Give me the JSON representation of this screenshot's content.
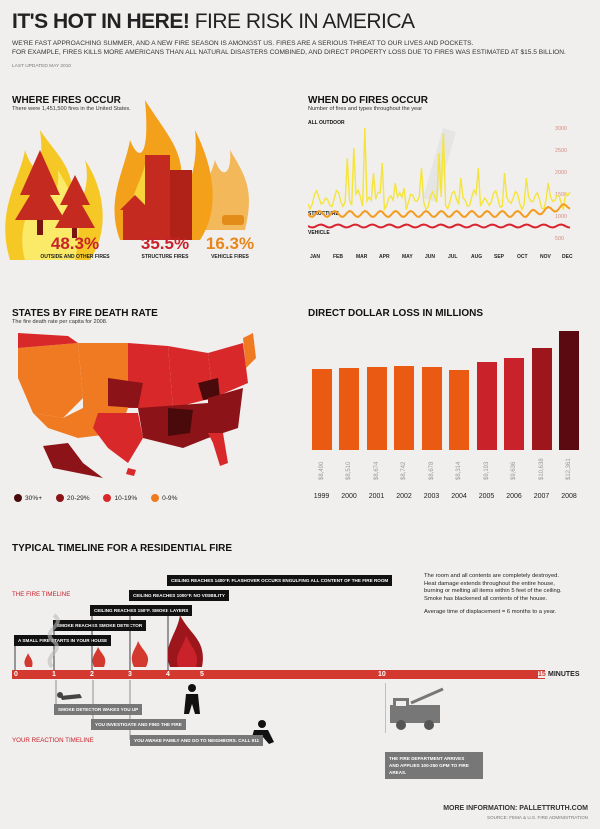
{
  "header": {
    "title_bold": "IT'S HOT IN HERE!",
    "title_rest": "FIRE RISK IN AMERICA",
    "intro_line1": "WE'RE FAST APPROACHING SUMMER, AND A NEW FIRE SEASON IS AMONGST US. FIRES ARE A SERIOUS THREAT TO OUR LIVES AND POCKETS.",
    "intro_line2": "FOR EXAMPLE, FIRES KILLS MORE AMERICANS THAN ALL NATURAL DISASTERS COMBINED, AND DIRECT PROPERTY LOSS DUE TO FIRES WAS ESTIMATED AT $15.5 BILLION.",
    "updated": "LAST UPDATED MAY 2010"
  },
  "where": {
    "title": "WHERE FIRES OCCUR",
    "subtitle": "There were 1,451,500 fires in the United States.",
    "items": [
      {
        "pct": "48.3%",
        "label": "OUTSIDE AND OTHER FIRES"
      },
      {
        "pct": "35.5%",
        "label": "STRUCTURE FIRES"
      },
      {
        "pct": "16.3%",
        "label": "VEHICLE FIRES"
      }
    ]
  },
  "when": {
    "title": "WHEN DO FIRES OCCUR",
    "subtitle": "Number of fires and types throughout the year",
    "series_outdoor": "ALL OUTDOOR",
    "series_structure": "STRUCTURE",
    "series_vehicle": "VEHICLE",
    "yticks": [
      "3000",
      "2500",
      "2000",
      "1500",
      "1000",
      "500"
    ],
    "months": [
      "JAN",
      "FEB",
      "MAR",
      "APR",
      "MAY",
      "JUN",
      "JUL",
      "AUG",
      "SEP",
      "OCT",
      "NOV",
      "DEC"
    ],
    "colors": {
      "outdoor": "#f5e43a",
      "structure": "#f39c1f",
      "vehicle": "#d9232d"
    }
  },
  "states": {
    "title": "STATES BY FIRE DEATH RATE",
    "subtitle": "The fire death rate per capita for 2008.",
    "legend": [
      {
        "label": "30%+",
        "color": "#4a0a0c"
      },
      {
        "label": "20-29%",
        "color": "#8c1418"
      },
      {
        "label": "10-19%",
        "color": "#d8282a"
      },
      {
        "label": "0-9%",
        "color": "#f07a22"
      }
    ]
  },
  "dollar": {
    "title": "DIRECT DOLLAR LOSS IN MILLIONS"
  },
  "chart_data": {
    "type": "bar",
    "title": "DIRECT DOLLAR LOSS IN MILLIONS",
    "categories": [
      "1999",
      "2000",
      "2001",
      "2002",
      "2003",
      "2004",
      "2005",
      "2006",
      "2007",
      "2008"
    ],
    "values": [
      8490,
      8510,
      8674,
      8742,
      8678,
      8314,
      9193,
      9636,
      10638,
      12361
    ],
    "value_labels": [
      "$8,490",
      "$8,510",
      "$8,674",
      "$8,742",
      "$8,678",
      "$8,314",
      "$9,193",
      "$9,636",
      "$10,638",
      "$12,361"
    ],
    "colors": [
      "#ea5a12",
      "#ea5a12",
      "#ea5a12",
      "#ea5a12",
      "#ea5a12",
      "#ea5a12",
      "#c9222a",
      "#c9222a",
      "#9c161b",
      "#5a0a10"
    ]
  },
  "timeline": {
    "title": "TYPICAL TIMELINE FOR A RESIDENTIAL FIRE",
    "fire_label": "THE FIRE TIMELINE",
    "reaction_label": "YOUR REACTION TIMELINE",
    "minutes_label": "MINUTES",
    "ticks": [
      "0",
      "1",
      "2",
      "3",
      "4",
      "5",
      "10",
      "15"
    ],
    "fire_events": [
      "CEILING REACHES 1400°F. FLASHOVER OCCURS ENGULFING ALL CONTENT OF THE FIRE ROOM",
      "CEILING REACHES 1000°F. NO VISIBILITY",
      "CEILING REACHES 150°F. SMOKE LAYERS",
      "SMOKE REACHES SMOKE DETECTOR",
      "A SMALL FIRE STARTS IN YOUR HOUSE"
    ],
    "reaction_events": [
      "SMOKE DETECTOR WAKES YOU UP",
      "YOU INVESTIGATE AND FIND THE FIRE",
      "YOU AWAKE FAMILY AND GO TO NEIGHBORS. CALL 911",
      "THE FIRE DEPARTMENT ARRIVES",
      "AND APPLIES 100-250 GPM TO FIRE AREAS."
    ],
    "note_line1": "The room and all contents are completely destroyed.",
    "note_line2": "Heat damage extends throughout the entire house,",
    "note_line3": "burning or melting all items within 5 feet of the ceiling.",
    "note_line4": "Smoke has blackened all contents of the house.",
    "note_line5": "Average time of displacement = 6 months to a year."
  },
  "footer": {
    "more": "MORE INFORMATION: PALLETTRUTH.COM",
    "source": "SOURCE: FEMA & U.S. FIRE ADMINISTRATION"
  }
}
